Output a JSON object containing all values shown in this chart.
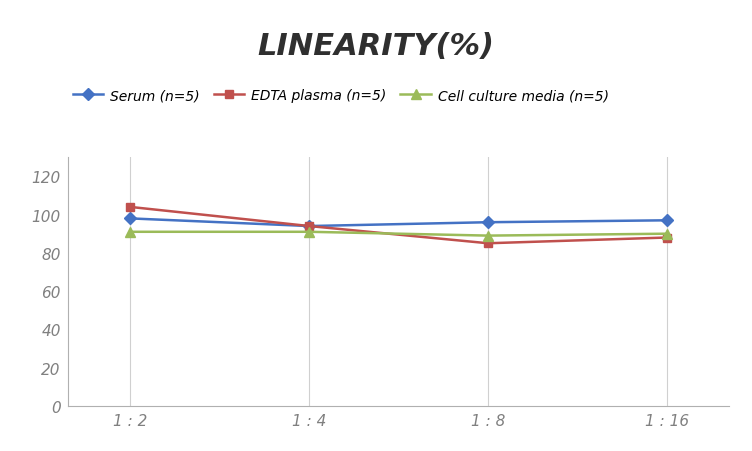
{
  "title": "LINEARITY(%)",
  "x_labels": [
    "1 : 2",
    "1 : 4",
    "1 : 8",
    "1 : 16"
  ],
  "series": [
    {
      "label": "Serum (n=5)",
      "values": [
        98,
        94,
        96,
        97
      ],
      "color": "#4472C4",
      "marker": "D",
      "markersize": 6,
      "linewidth": 1.8
    },
    {
      "label": "EDTA plasma (n=5)",
      "values": [
        104,
        94,
        85,
        88
      ],
      "color": "#C0504D",
      "marker": "s",
      "markersize": 6,
      "linewidth": 1.8
    },
    {
      "label": "Cell culture media (n=5)",
      "values": [
        91,
        91,
        89,
        90
      ],
      "color": "#9BBB59",
      "marker": "^",
      "markersize": 7,
      "linewidth": 1.8
    }
  ],
  "ylim": [
    0,
    130
  ],
  "yticks": [
    0,
    20,
    40,
    60,
    80,
    100,
    120
  ],
  "background_color": "#ffffff",
  "grid_color": "#d0d0d0",
  "title_fontsize": 22,
  "title_fontstyle": "italic",
  "title_fontweight": "bold",
  "legend_fontsize": 10,
  "tick_fontsize": 11,
  "tick_color": "#808080"
}
